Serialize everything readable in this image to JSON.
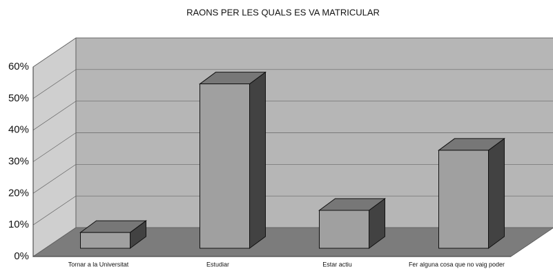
{
  "chart_data": {
    "type": "bar3d",
    "title": "RAONS PER LES QUALS ES VA MATRICULAR",
    "categories": [
      "Tornar a la Universitat",
      "Estudiar",
      "Estar actiu",
      "Fer alguna cosa que no vaig poder"
    ],
    "values": [
      5,
      52,
      12,
      31
    ],
    "color": "#a0a0a0",
    "ylim": [
      0,
      60
    ],
    "yticks": [
      {
        "value": 0,
        "label": "0%"
      },
      {
        "value": 10,
        "label": "10%"
      },
      {
        "value": 20,
        "label": "20%"
      },
      {
        "value": 30,
        "label": "30%"
      },
      {
        "value": 40,
        "label": "40%"
      },
      {
        "value": 50,
        "label": "50%"
      },
      {
        "value": 60,
        "label": "60%"
      }
    ],
    "grid": true
  }
}
